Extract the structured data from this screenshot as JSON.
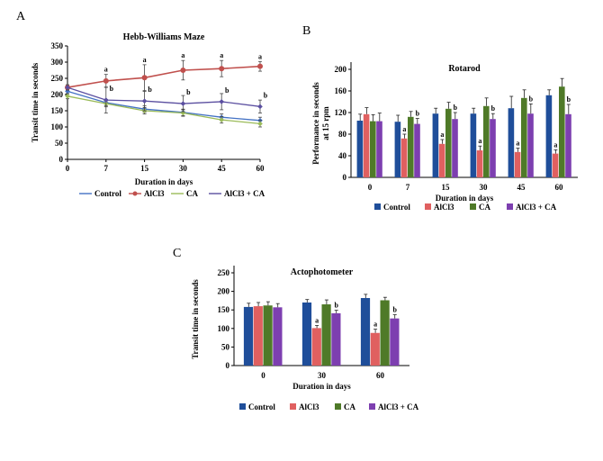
{
  "panels": {
    "a": "A",
    "b": "B",
    "c": "C"
  },
  "chart_data": [
    {
      "type": "line",
      "panel": "A",
      "title": "Hebb-Williams Maze",
      "xlabel": "Duration in days",
      "ylabel": "Transit time in seconds",
      "categories": [
        "0",
        "7",
        "15",
        "30",
        "45",
        "60"
      ],
      "ylim": [
        0,
        350
      ],
      "yticks": [
        0,
        50,
        100,
        150,
        200,
        250,
        300,
        350
      ],
      "legend_position": "bottom",
      "series": [
        {
          "name": "Control",
          "color": "#4472c4",
          "values": [
            210,
            175,
            155,
            145,
            130,
            120
          ],
          "err": [
            8,
            10,
            10,
            10,
            10,
            10
          ],
          "labels": [
            "",
            "",
            "",
            "",
            "",
            ""
          ]
        },
        {
          "name": "AlCl3",
          "color": "#c0504d",
          "values": [
            222,
            242,
            252,
            275,
            280,
            287
          ],
          "err": [
            8,
            20,
            40,
            30,
            25,
            15
          ],
          "labels": [
            "",
            "a",
            "a",
            "a",
            "a",
            "a"
          ]
        },
        {
          "name": "CA",
          "color": "#9bbb59",
          "values": [
            195,
            172,
            150,
            143,
            122,
            110
          ],
          "err": [
            8,
            10,
            10,
            10,
            10,
            10
          ],
          "labels": [
            "",
            "",
            "",
            "",
            "",
            ""
          ]
        },
        {
          "name": "AlCl3 + CA",
          "color": "#5b4fa0",
          "values": [
            222,
            183,
            180,
            172,
            178,
            163
          ],
          "err": [
            8,
            40,
            30,
            25,
            25,
            20
          ],
          "labels": [
            "",
            "b",
            "b",
            "b",
            "b",
            "b"
          ]
        }
      ]
    },
    {
      "type": "bar",
      "panel": "B",
      "title": "Rotarod",
      "xlabel": "Duration in days",
      "ylabel": "Performance in seconds at 15 rpm",
      "ylabel_lines": [
        "Performance in seconds",
        "at 15 rpm"
      ],
      "categories": [
        "0",
        "7",
        "15",
        "30",
        "45",
        "60"
      ],
      "ylim": [
        0,
        200
      ],
      "yticks": [
        0,
        40,
        80,
        120,
        160,
        200
      ],
      "legend_position": "bottom",
      "series": [
        {
          "name": "Control",
          "color": "#1f4e9a",
          "values": [
            105,
            103,
            118,
            118,
            128,
            152
          ],
          "err": [
            12,
            12,
            10,
            10,
            22,
            10
          ],
          "labels": [
            "",
            "",
            "",
            "",
            "",
            ""
          ]
        },
        {
          "name": "AlCl3",
          "color": "#e06060",
          "values": [
            117,
            72,
            62,
            50,
            47,
            44
          ],
          "err": [
            12,
            8,
            8,
            8,
            7,
            7
          ],
          "labels": [
            "",
            "a",
            "a",
            "a",
            "a",
            "a"
          ]
        },
        {
          "name": "CA",
          "color": "#4f7a28",
          "values": [
            104,
            112,
            127,
            132,
            147,
            168
          ],
          "err": [
            12,
            10,
            12,
            15,
            15,
            15
          ],
          "labels": [
            "",
            "",
            "",
            "",
            "",
            ""
          ]
        },
        {
          "name": "AlCl3 + CA",
          "color": "#7d3fb0",
          "values": [
            104,
            99,
            108,
            108,
            118,
            117
          ],
          "err": [
            15,
            10,
            12,
            10,
            18,
            18
          ],
          "labels": [
            "",
            "b",
            "b",
            "b",
            "b",
            "b"
          ]
        }
      ]
    },
    {
      "type": "bar",
      "panel": "C",
      "title": "Actophotometer",
      "xlabel": "Duration in days",
      "ylabel": "Transit time in seconds",
      "categories": [
        "0",
        "30",
        "60"
      ],
      "ylim": [
        0,
        250
      ],
      "yticks": [
        0,
        50,
        100,
        150,
        200,
        250
      ],
      "legend_position": "bottom",
      "series": [
        {
          "name": "Control",
          "color": "#1f4e9a",
          "values": [
            158,
            170,
            182
          ],
          "err": [
            10,
            8,
            10
          ],
          "labels": [
            "",
            "",
            ""
          ]
        },
        {
          "name": "AlCl3",
          "color": "#e06060",
          "values": [
            160,
            101,
            88
          ],
          "err": [
            10,
            7,
            10
          ],
          "labels": [
            "",
            "a",
            "a"
          ]
        },
        {
          "name": "CA",
          "color": "#4f7a28",
          "values": [
            162,
            165,
            176
          ],
          "err": [
            10,
            12,
            8
          ],
          "labels": [
            "",
            "",
            ""
          ]
        },
        {
          "name": "AlCl3 + CA",
          "color": "#7d3fb0",
          "values": [
            157,
            141,
            127
          ],
          "err": [
            10,
            8,
            10
          ],
          "labels": [
            "",
            "b",
            "b"
          ]
        }
      ]
    }
  ]
}
